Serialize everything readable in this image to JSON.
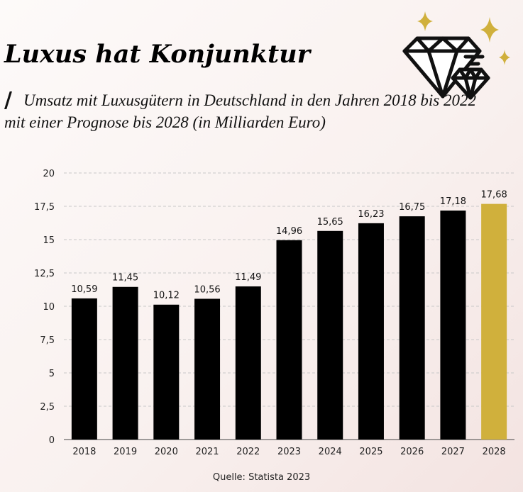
{
  "header": {
    "title": "Luxus hat Konjunktur",
    "slash": "/",
    "subtitle": "Umsatz mit Luxusgütern in Deutschland in den Jahren 2018 bis 2022 mit einer Prognose bis 2028 (in Milliarden Euro)"
  },
  "source": "Quelle: Statista 2023",
  "icons": {
    "illustration": "diamonds-icon"
  },
  "colors": {
    "bar": "#000000",
    "highlight": "#d0b03c",
    "grid": "#c8c8c8",
    "sparkle": "#d0b03c"
  },
  "chart_data": {
    "type": "bar",
    "title": "",
    "xlabel": "",
    "ylabel": "",
    "categories": [
      "2018",
      "2019",
      "2020",
      "2021",
      "2022",
      "2023",
      "2024",
      "2025",
      "2026",
      "2027",
      "2028"
    ],
    "values": [
      10.59,
      11.45,
      10.12,
      10.56,
      11.49,
      14.96,
      15.65,
      16.23,
      16.75,
      17.18,
      17.68
    ],
    "value_labels": [
      "10,59",
      "11,45",
      "10,12",
      "10,56",
      "11,49",
      "14,96",
      "15,65",
      "16,23",
      "16,75",
      "17,18",
      "17,68"
    ],
    "ylim": [
      0,
      20
    ],
    "yticks": [
      0,
      2.5,
      5,
      7.5,
      10,
      12.5,
      15,
      17.5,
      20
    ],
    "ytick_labels": [
      "0",
      "2,5",
      "5",
      "7,5",
      "10",
      "12,5",
      "15",
      "17,5",
      "20"
    ],
    "highlight_index": 10,
    "grid": true,
    "legend": "none"
  }
}
